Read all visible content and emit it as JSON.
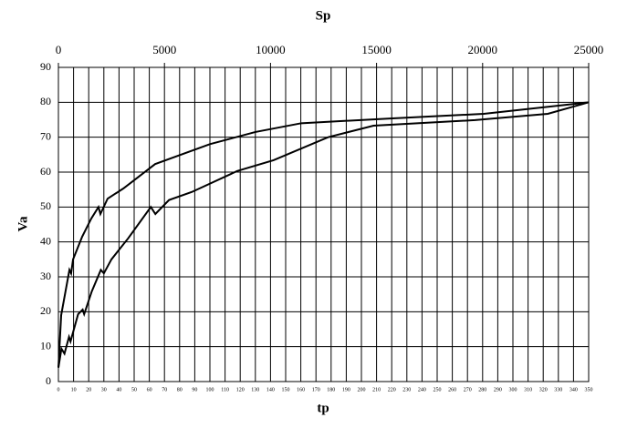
{
  "chart_data": {
    "type": "line",
    "x_label": "tp",
    "x2_label": "Sp",
    "y_label": "Va",
    "xlim": [
      0,
      350
    ],
    "xticks": [
      0,
      10,
      20,
      30,
      40,
      50,
      60,
      70,
      80,
      90,
      100,
      110,
      120,
      130,
      140,
      150,
      160,
      170,
      180,
      190,
      200,
      210,
      220,
      230,
      240,
      250,
      260,
      270,
      280,
      290,
      300,
      310,
      320,
      330,
      340,
      350
    ],
    "x2lim": [
      0,
      25000
    ],
    "x2ticks": [
      0,
      5000,
      10000,
      15000,
      20000,
      25000
    ],
    "ylim": [
      0,
      90
    ],
    "yticks": [
      0,
      10,
      20,
      30,
      40,
      50,
      60,
      70,
      80,
      90
    ],
    "grid": true,
    "series": [
      {
        "axis": "x2",
        "color": "#000000",
        "x": [
          0,
          130,
          340,
          520,
          600,
          690,
          1120,
          1550,
          1890,
          1980,
          2320,
          3060,
          4560,
          7140,
          9290,
          11450,
          15750,
          20050,
          25000
        ],
        "values": [
          4,
          19,
          26,
          32,
          31,
          35,
          41.5,
          46.7,
          50,
          48,
          52.4,
          55.3,
          62.3,
          68,
          71.5,
          74,
          75.4,
          76.7,
          80
        ]
      },
      {
        "color": "#000000",
        "x": [
          0,
          2,
          4,
          7,
          8,
          13,
          16,
          17,
          22,
          28,
          30,
          35,
          46,
          61,
          64,
          73,
          88,
          118,
          142,
          178,
          208,
          275,
          323,
          350
        ],
        "values": [
          4,
          9.4,
          8,
          12.8,
          11.5,
          19.3,
          20.6,
          19.3,
          25.8,
          32,
          31,
          35,
          41,
          50,
          48,
          52,
          54.3,
          60.3,
          63.4,
          70,
          73.3,
          74.9,
          76.7,
          80
        ]
      }
    ]
  }
}
